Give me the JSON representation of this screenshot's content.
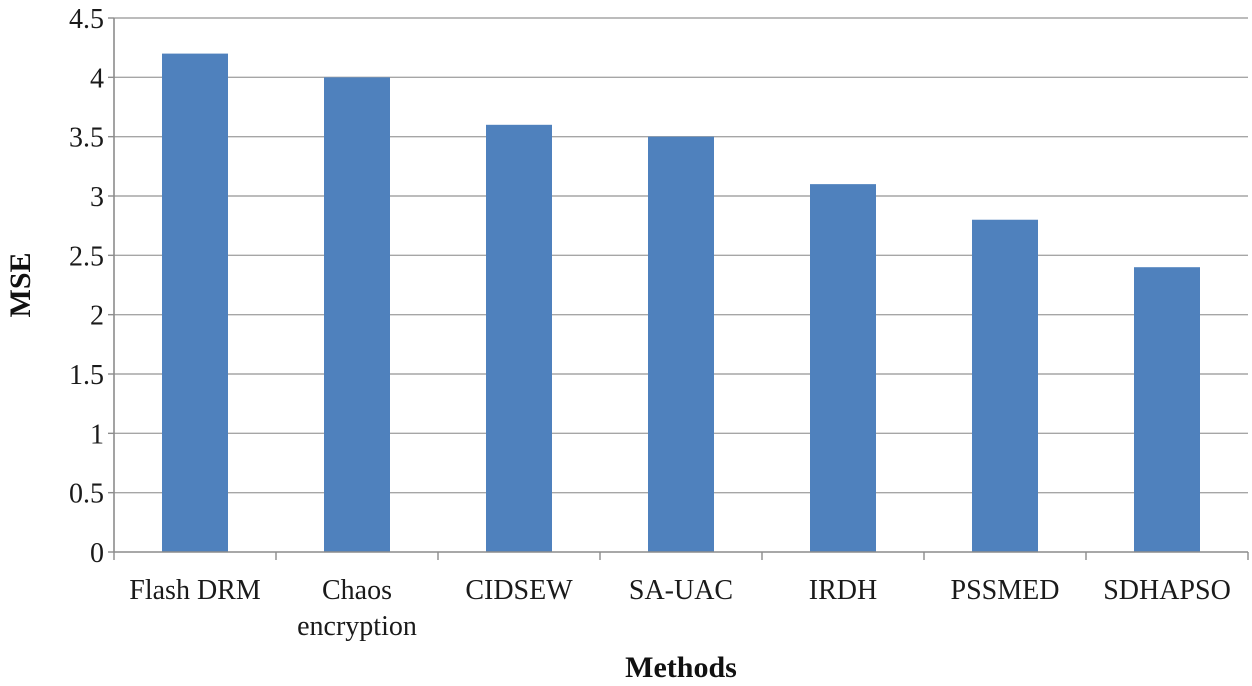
{
  "chart_data": {
    "type": "bar",
    "title": "",
    "xlabel": "Methods",
    "ylabel": "MSE",
    "categories": [
      "Flash DRM",
      "Chaos encryption",
      "CIDSEW",
      "SA-UAC",
      "IRDH",
      "PSSMED",
      "SDHAPSO"
    ],
    "category_lines": [
      [
        "Flash DRM"
      ],
      [
        "Chaos",
        "encryption"
      ],
      [
        "CIDSEW"
      ],
      [
        "SA-UAC"
      ],
      [
        "IRDH"
      ],
      [
        "PSSMED"
      ],
      [
        "SDHAPSO"
      ]
    ],
    "values": [
      4.2,
      4.0,
      3.6,
      3.5,
      3.1,
      2.8,
      2.4
    ],
    "ylim": [
      0,
      4.5
    ],
    "yticks": [
      "0",
      "0.5",
      "1",
      "1.5",
      "2",
      "2.5",
      "3",
      "3.5",
      "4",
      "4.5"
    ],
    "grid": true,
    "legend": "none",
    "colors": {
      "bar": "#4f81bd",
      "grid": "#a6a6a6",
      "axis": "#8c8c8c"
    }
  }
}
